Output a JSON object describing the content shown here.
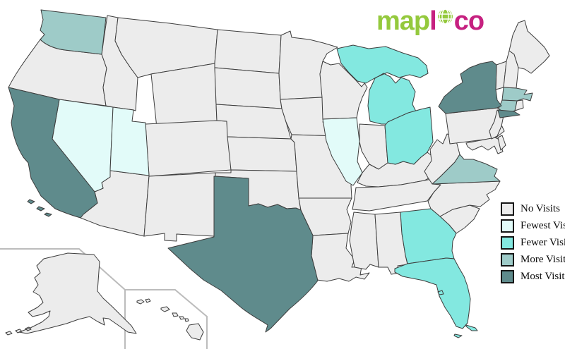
{
  "logo": {
    "map_text": "map",
    "l_text": "l",
    "o_globe_letter": "o",
    "co_text": "co",
    "green": "#94c93d",
    "pink": "#c62180"
  },
  "legend": {
    "items": [
      {
        "level": "none",
        "label": "No Visits"
      },
      {
        "level": "fewest",
        "label": "Fewest Visits"
      },
      {
        "level": "fewer",
        "label": "Fewer Visits"
      },
      {
        "level": "more",
        "label": "More Visits"
      },
      {
        "level": "most",
        "label": "Most Visits"
      }
    ],
    "swatch_border_color": "#161616"
  },
  "map": {
    "background": "#ffffff",
    "state_border_color": "#3d3d3d",
    "inset_border_color": "#bcbcbc",
    "level_colors": {
      "none": "#ececec",
      "fewest": "#e2fbf9",
      "fewer": "#83e8e0",
      "more": "#9ecbc8",
      "most": "#5f8b8c"
    },
    "states": [
      {
        "id": "OR",
        "name": "Oregon",
        "level": "none"
      },
      {
        "id": "ID",
        "name": "Idaho",
        "level": "none"
      },
      {
        "id": "MT",
        "name": "Montana",
        "level": "none"
      },
      {
        "id": "WY",
        "name": "Wyoming",
        "level": "none"
      },
      {
        "id": "CO",
        "name": "Colorado",
        "level": "none"
      },
      {
        "id": "AZ",
        "name": "Arizona",
        "level": "none"
      },
      {
        "id": "NM",
        "name": "New Mexico",
        "level": "none"
      },
      {
        "id": "ND",
        "name": "North Dakota",
        "level": "none"
      },
      {
        "id": "SD",
        "name": "South Dakota",
        "level": "none"
      },
      {
        "id": "NE",
        "name": "Nebraska",
        "level": "none"
      },
      {
        "id": "KS",
        "name": "Kansas",
        "level": "none"
      },
      {
        "id": "OK",
        "name": "Oklahoma",
        "level": "none"
      },
      {
        "id": "MN",
        "name": "Minnesota",
        "level": "none"
      },
      {
        "id": "IA",
        "name": "Iowa",
        "level": "none"
      },
      {
        "id": "MO",
        "name": "Missouri",
        "level": "none"
      },
      {
        "id": "AR",
        "name": "Arkansas",
        "level": "none"
      },
      {
        "id": "LA",
        "name": "Louisiana",
        "level": "none"
      },
      {
        "id": "WI",
        "name": "Wisconsin",
        "level": "none"
      },
      {
        "id": "IN",
        "name": "Indiana",
        "level": "none"
      },
      {
        "id": "KY",
        "name": "Kentucky",
        "level": "none"
      },
      {
        "id": "TN",
        "name": "Tennessee",
        "level": "none"
      },
      {
        "id": "MS",
        "name": "Mississippi",
        "level": "none"
      },
      {
        "id": "AL",
        "name": "Alabama",
        "level": "none"
      },
      {
        "id": "SC",
        "name": "South Carolina",
        "level": "none"
      },
      {
        "id": "NC",
        "name": "North Carolina",
        "level": "none"
      },
      {
        "id": "WV",
        "name": "West Virginia",
        "level": "none"
      },
      {
        "id": "PA",
        "name": "Pennsylvania",
        "level": "none"
      },
      {
        "id": "MD",
        "name": "Maryland",
        "level": "none"
      },
      {
        "id": "DE",
        "name": "Delaware",
        "level": "none"
      },
      {
        "id": "NJ",
        "name": "New Jersey",
        "level": "none"
      },
      {
        "id": "VT",
        "name": "Vermont",
        "level": "none"
      },
      {
        "id": "NH",
        "name": "New Hampshire",
        "level": "none"
      },
      {
        "id": "ME",
        "name": "Maine",
        "level": "none"
      },
      {
        "id": "RI",
        "name": "Rhode Island",
        "level": "none"
      },
      {
        "id": "AK",
        "name": "Alaska",
        "level": "none"
      },
      {
        "id": "HI",
        "name": "Hawaii",
        "level": "none"
      },
      {
        "id": "NV",
        "name": "Nevada",
        "level": "fewest"
      },
      {
        "id": "UT",
        "name": "Utah",
        "level": "fewest"
      },
      {
        "id": "IL",
        "name": "Illinois",
        "level": "fewest"
      },
      {
        "id": "MI",
        "name": "Michigan",
        "level": "fewer"
      },
      {
        "id": "OH",
        "name": "Ohio",
        "level": "fewer"
      },
      {
        "id": "GA",
        "name": "Georgia",
        "level": "fewer"
      },
      {
        "id": "FL",
        "name": "Florida",
        "level": "fewer"
      },
      {
        "id": "WA",
        "name": "Washington",
        "level": "more"
      },
      {
        "id": "VA",
        "name": "Virginia",
        "level": "more"
      },
      {
        "id": "MA",
        "name": "Massachusetts",
        "level": "more"
      },
      {
        "id": "CT",
        "name": "Connecticut",
        "level": "more"
      },
      {
        "id": "CA",
        "name": "California",
        "level": "most"
      },
      {
        "id": "TX",
        "name": "Texas",
        "level": "most"
      },
      {
        "id": "NY",
        "name": "New York",
        "level": "most"
      }
    ]
  }
}
